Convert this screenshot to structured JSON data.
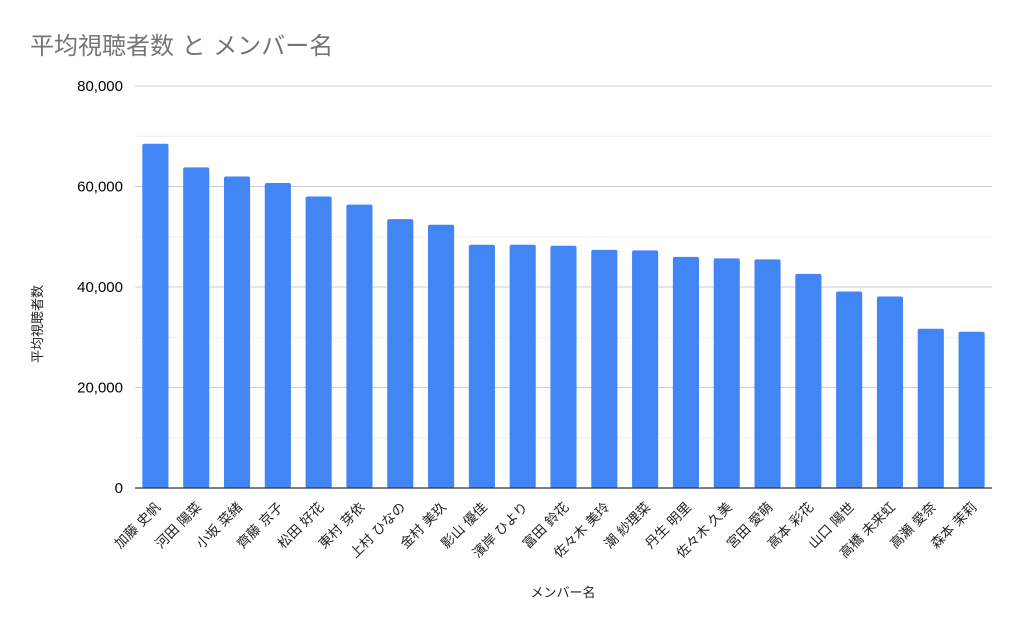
{
  "chart_data": {
    "type": "bar",
    "title": "平均視聴者数 と メンバー名",
    "xlabel": "メンバー名",
    "ylabel": "平均視聴者数",
    "ylim": [
      0,
      80000
    ],
    "yticks": [
      0,
      20000,
      40000,
      60000,
      80000
    ],
    "ytick_labels": [
      "0",
      "20,000",
      "40,000",
      "60,000",
      "80,000"
    ],
    "grid": true,
    "legend": "none",
    "bar_color": "#4285f4",
    "categories": [
      "加藤 史帆",
      "河田 陽菜",
      "小坂 菜緒",
      "齊藤 京子",
      "松田 好花",
      "東村 芽依",
      "上村 ひなの",
      "金村 美玖",
      "影山 優佳",
      "濱岸 ひより",
      "富田 鈴花",
      "佐々木 美玲",
      "潮 紗理菜",
      "丹生 明里",
      "佐々木 久美",
      "宮田 愛萌",
      "高本 彩花",
      "山口 陽世",
      "高橋 未来虹",
      "高瀬 愛奈",
      "森本 茉莉"
    ],
    "values": [
      68500,
      63800,
      62000,
      60700,
      58000,
      56400,
      53500,
      52400,
      48400,
      48400,
      48200,
      47400,
      47300,
      46000,
      45700,
      45500,
      42600,
      39100,
      38100,
      31700,
      31100
    ]
  }
}
